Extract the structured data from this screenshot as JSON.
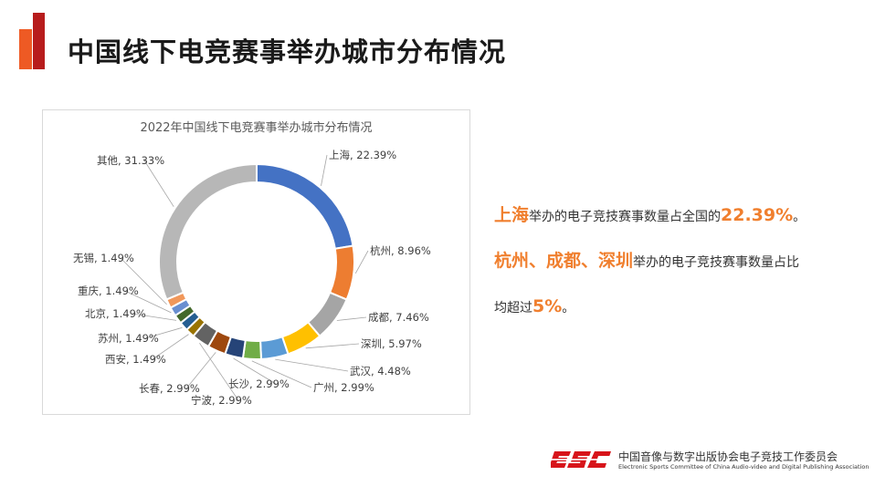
{
  "slide": {
    "title": "中国线下电竞赛事举办城市分布情况"
  },
  "chart_data": {
    "type": "pie",
    "donut": true,
    "title": "2022年中国线下电竞赛事举办城市分布情况",
    "slices": [
      {
        "name": "上海",
        "value": 22.39,
        "label": "上海, 22.39%",
        "color": "#4472c4"
      },
      {
        "name": "杭州",
        "value": 8.96,
        "label": "杭州, 8.96%",
        "color": "#ed7d31"
      },
      {
        "name": "成都",
        "value": 7.46,
        "label": "成都, 7.46%",
        "color": "#a5a5a5"
      },
      {
        "name": "深圳",
        "value": 5.97,
        "label": "深圳, 5.97%",
        "color": "#ffc000"
      },
      {
        "name": "武汉",
        "value": 4.48,
        "label": "武汉, 4.48%",
        "color": "#5b9bd5"
      },
      {
        "name": "广州",
        "value": 2.99,
        "label": "广州, 2.99%",
        "color": "#70ad47"
      },
      {
        "name": "长沙",
        "value": 2.99,
        "label": "长沙, 2.99%",
        "color": "#264478"
      },
      {
        "name": "长春",
        "value": 2.99,
        "label": "长春, 2.99%",
        "color": "#9e480e"
      },
      {
        "name": "宁波",
        "value": 2.99,
        "label": "宁波, 2.99%",
        "color": "#636363"
      },
      {
        "name": "西安",
        "value": 1.49,
        "label": "西安, 1.49%",
        "color": "#997300"
      },
      {
        "name": "苏州",
        "value": 1.49,
        "label": "苏州, 1.49%",
        "color": "#255e91"
      },
      {
        "name": "北京",
        "value": 1.49,
        "label": "北京, 1.49%",
        "color": "#43682b"
      },
      {
        "name": "重庆",
        "value": 1.49,
        "label": "重庆, 1.49%",
        "color": "#698ed0"
      },
      {
        "name": "无锡",
        "value": 1.49,
        "label": "无锡, 1.49%",
        "color": "#f1975a"
      },
      {
        "name": "其他",
        "value": 31.33,
        "label": "其他, 31.33%",
        "color": "#b7b7b7"
      }
    ]
  },
  "summary": {
    "line1": {
      "city": "上海",
      "text": "举办的电子竞技赛事数量占全国的",
      "pct": "22.39%",
      "end": "。"
    },
    "line2": {
      "cities": "杭州、成都、深圳",
      "text": "举办的电子竞技赛事数量占比"
    },
    "line3": {
      "text": "均超过",
      "pct": "5%",
      "end": "。"
    }
  },
  "footer": {
    "logo_text": "ESC",
    "org_cn": "中国音像与数字出版协会电子竞技工作委员会",
    "org_en": "Electronic Sports Committee of China Audio-video and Digital Publishing Association",
    "brand_color": "#d7141a"
  }
}
